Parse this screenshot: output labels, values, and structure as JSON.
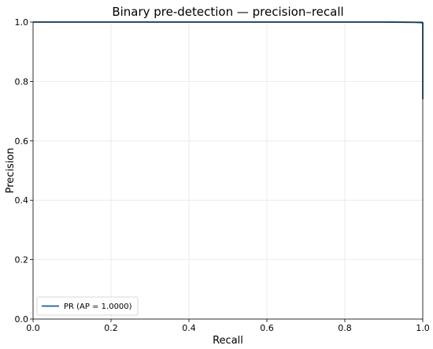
{
  "chart_data": {
    "type": "line",
    "title": "Binary pre-detection — precision–recall",
    "xlabel": "Recall",
    "ylabel": "Precision",
    "xlim": [
      0.0,
      1.0
    ],
    "ylim": [
      0.0,
      1.0
    ],
    "xticks": [
      "0.0",
      "0.2",
      "0.4",
      "0.6",
      "0.8",
      "1.0"
    ],
    "yticks": [
      "0.0",
      "0.2",
      "0.4",
      "0.6",
      "0.8",
      "1.0"
    ],
    "grid": true,
    "legend_position": "lower-left",
    "series": [
      {
        "name": "PR (AP = 1.0000)",
        "color": "#1f5f8b",
        "x": [
          0.0,
          0.5,
          0.9,
          0.95,
          0.98,
          0.99,
          0.995,
          1.0,
          1.0
        ],
        "y": [
          1.0,
          1.0,
          1.0,
          0.9995,
          0.999,
          0.9985,
          0.998,
          0.997,
          0.74
        ]
      }
    ]
  }
}
